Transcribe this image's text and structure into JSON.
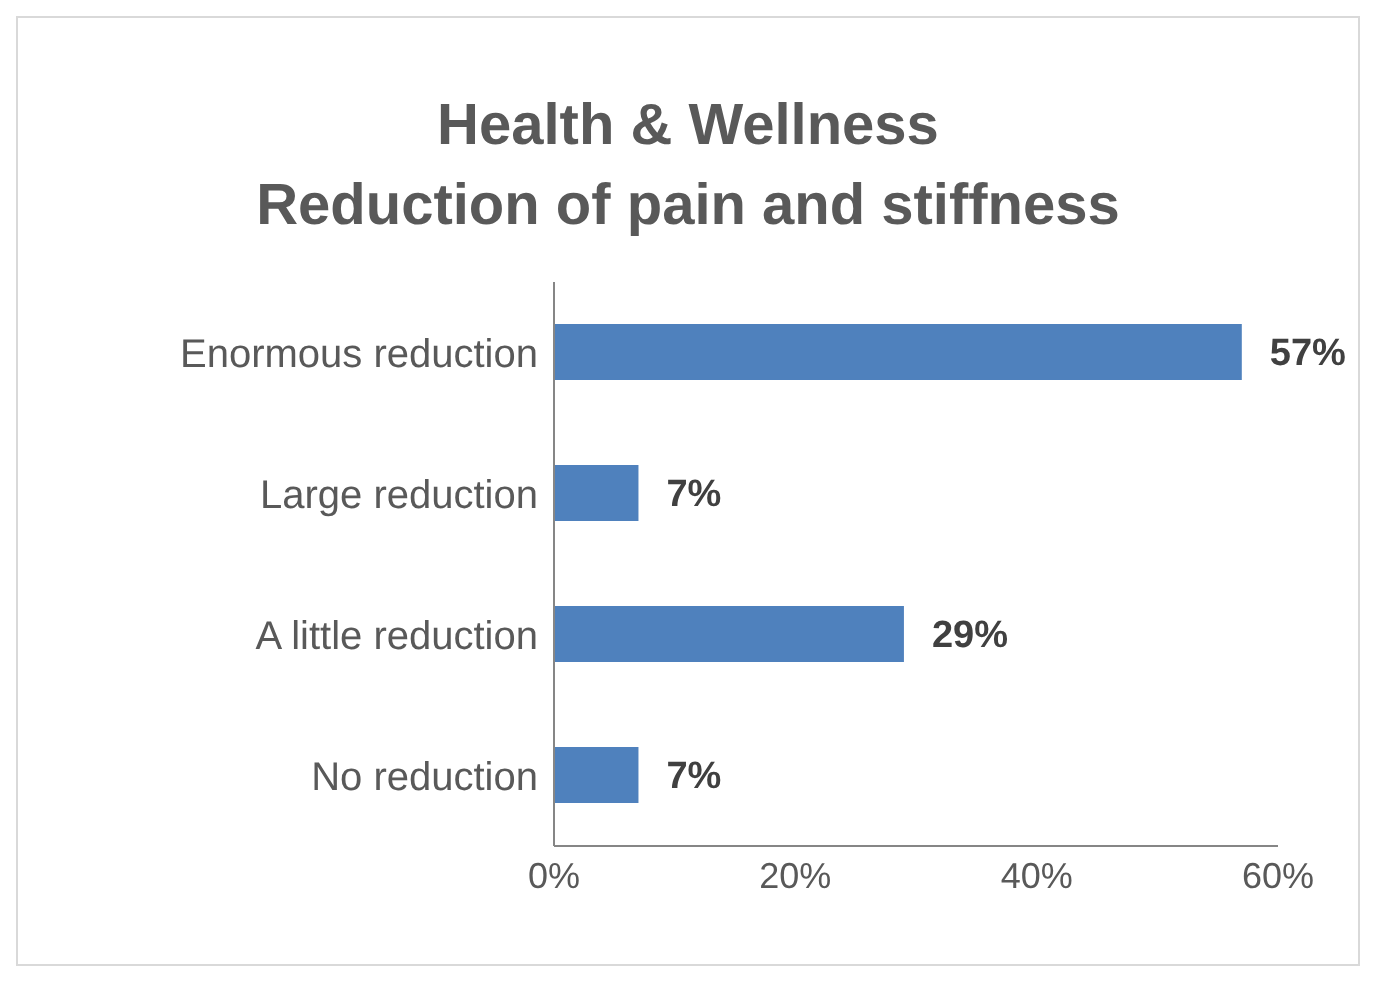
{
  "chart_data": {
    "type": "bar",
    "orientation": "horizontal",
    "title": "Health & Wellness",
    "subtitle": "Reduction of pain and stiffness",
    "categories": [
      "Enormous reduction",
      "Large reduction",
      "A little reduction",
      "No reduction"
    ],
    "values": [
      57,
      7,
      29,
      7
    ],
    "value_labels": [
      "57%",
      "7%",
      "29%",
      "7%"
    ],
    "color": "#4f81bd",
    "xlim": [
      0,
      60
    ],
    "xticks": [
      {
        "value": 0,
        "label": "0%"
      },
      {
        "value": 20,
        "label": "20%"
      },
      {
        "value": 40,
        "label": "40%"
      },
      {
        "value": 60,
        "label": "60%"
      }
    ],
    "grid": false,
    "legend": false
  }
}
